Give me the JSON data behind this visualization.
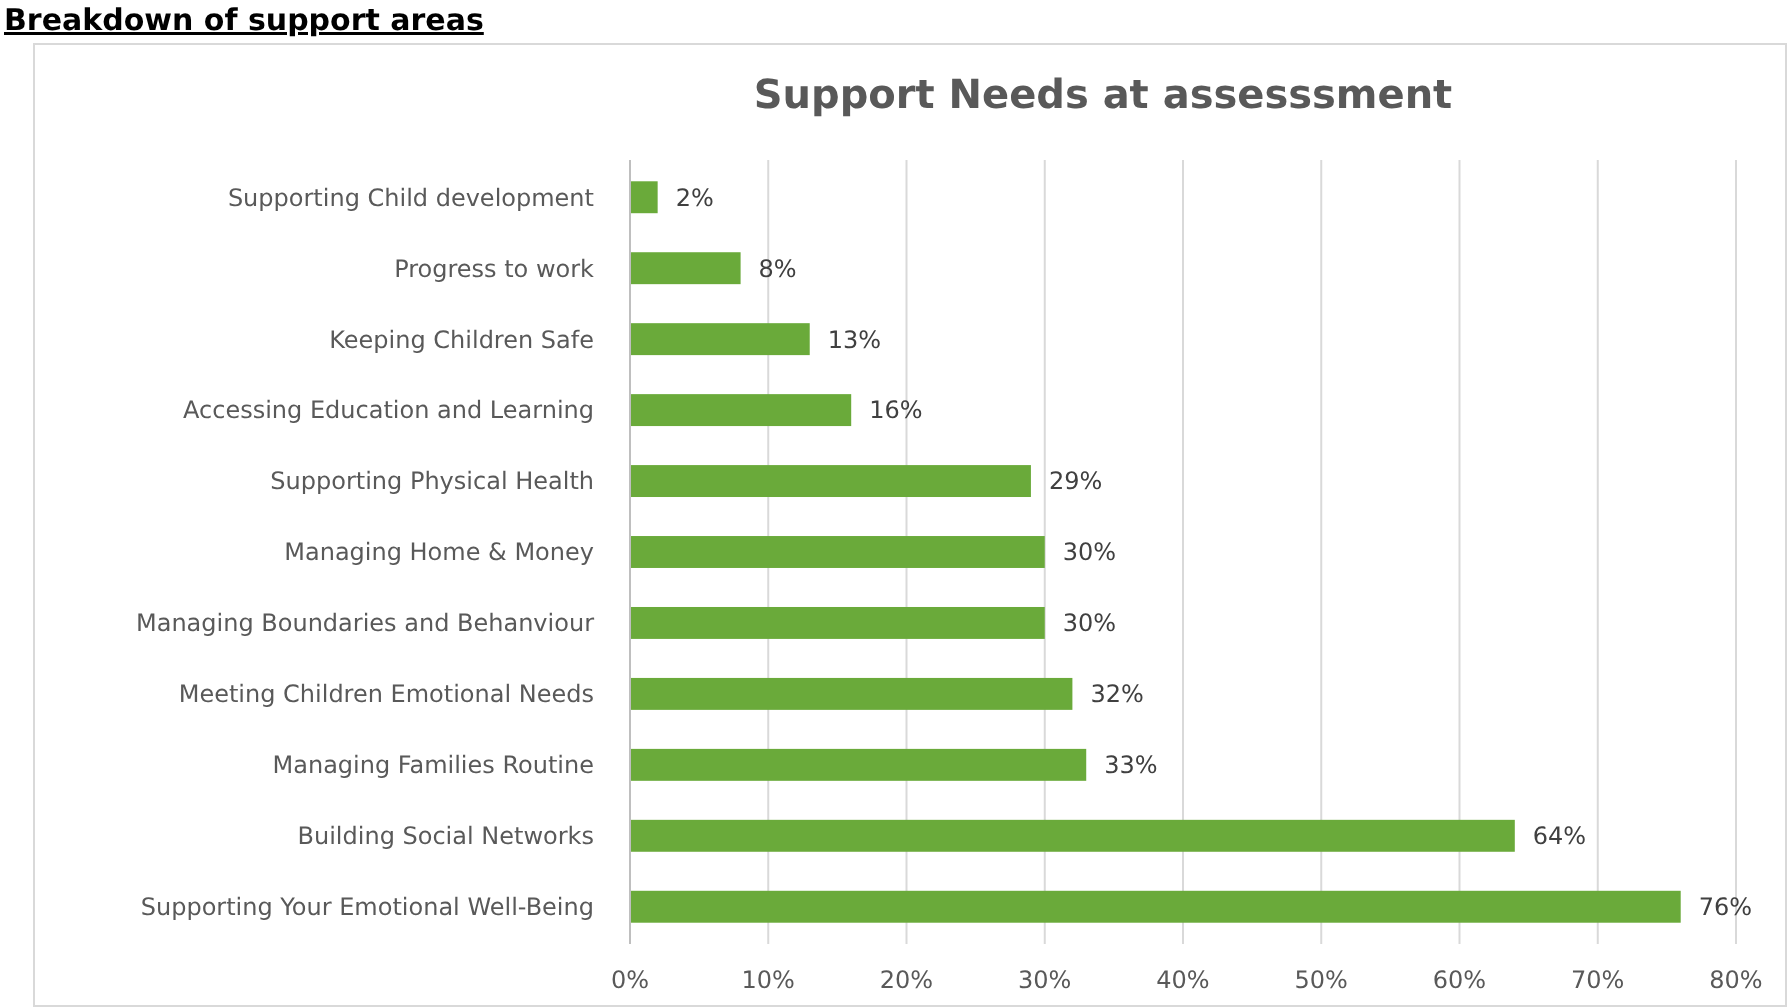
{
  "chart_data": {
    "type": "bar",
    "orientation": "horizontal",
    "title": "Support Needs at assesssment",
    "annotations": [
      "Breakdown of support areas"
    ],
    "categories": [
      "Supporting Child development",
      "Progress to work",
      "Keeping Children Safe",
      "Accessing Education and Learning",
      "Supporting Physical Health",
      "Managing Home & Money",
      "Managing Boundaries and Behanviour",
      "Meeting Children Emotional Needs",
      "Managing Families Routine",
      "Building Social Networks",
      "Supporting Your Emotional Well-Being"
    ],
    "values": [
      2,
      8,
      13,
      16,
      29,
      30,
      30,
      32,
      33,
      64,
      76
    ],
    "value_labels": [
      "2%",
      "8%",
      "13%",
      "16%",
      "29%",
      "30%",
      "30%",
      "32%",
      "33%",
      "64%",
      "76%"
    ],
    "color": "#6aaa3a",
    "xlim": [
      0,
      80
    ],
    "xticks": [
      {
        "value": 0,
        "label": "0%"
      },
      {
        "value": 10,
        "label": "10%"
      },
      {
        "value": 20,
        "label": "20%"
      },
      {
        "value": 30,
        "label": "30%"
      },
      {
        "value": 40,
        "label": "40%"
      },
      {
        "value": 50,
        "label": "50%"
      },
      {
        "value": 60,
        "label": "60%"
      },
      {
        "value": 70,
        "label": "70%"
      },
      {
        "value": 80,
        "label": "80%"
      }
    ],
    "grid": "x"
  }
}
